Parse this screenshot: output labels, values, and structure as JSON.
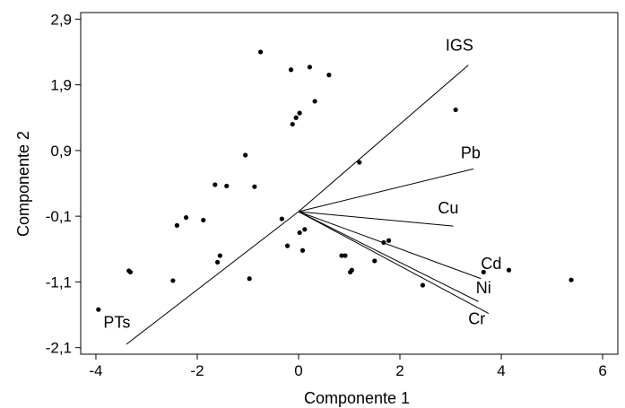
{
  "chart_data": {
    "type": "scatter",
    "xlabel": "Componente 1",
    "ylabel": "Componente 2",
    "xlim": [
      -4.3,
      6.3
    ],
    "ylim": [
      -2.2,
      3.0
    ],
    "xticks": [
      {
        "value": -4,
        "label": "-4"
      },
      {
        "value": -2,
        "label": "-2"
      },
      {
        "value": 0,
        "label": "0"
      },
      {
        "value": 2,
        "label": "2"
      },
      {
        "value": 4,
        "label": "4"
      },
      {
        "value": 6,
        "label": "6"
      }
    ],
    "yticks": [
      {
        "value": 2.9,
        "label": "2,9"
      },
      {
        "value": 1.9,
        "label": "1,9"
      },
      {
        "value": 0.9,
        "label": "0,9"
      },
      {
        "value": -0.1,
        "label": "-0,1"
      },
      {
        "value": -1.1,
        "label": "-1,1"
      },
      {
        "value": -2.1,
        "label": "-2,1"
      }
    ],
    "grid": false,
    "points": [
      {
        "x": -3.95,
        "y": -1.52
      },
      {
        "x": -3.35,
        "y": -0.93
      },
      {
        "x": -3.32,
        "y": -0.95
      },
      {
        "x": -2.48,
        "y": -1.08
      },
      {
        "x": -2.4,
        "y": -0.24
      },
      {
        "x": -2.22,
        "y": -0.12
      },
      {
        "x": -1.88,
        "y": -0.16
      },
      {
        "x": -1.65,
        "y": 0.38
      },
      {
        "x": -1.6,
        "y": -0.8
      },
      {
        "x": -1.55,
        "y": -0.7
      },
      {
        "x": -1.42,
        "y": 0.36
      },
      {
        "x": -1.05,
        "y": 0.83
      },
      {
        "x": -0.97,
        "y": -1.05
      },
      {
        "x": -0.87,
        "y": 0.35
      },
      {
        "x": -0.75,
        "y": 2.4
      },
      {
        "x": -0.33,
        "y": -0.14
      },
      {
        "x": -0.22,
        "y": -0.55
      },
      {
        "x": -0.15,
        "y": 2.13
      },
      {
        "x": -0.12,
        "y": 1.3
      },
      {
        "x": -0.05,
        "y": 1.4
      },
      {
        "x": 0.02,
        "y": 1.47
      },
      {
        "x": 0.02,
        "y": -0.35
      },
      {
        "x": 0.08,
        "y": -0.62
      },
      {
        "x": 0.12,
        "y": -0.3
      },
      {
        "x": 0.22,
        "y": 2.17
      },
      {
        "x": 0.32,
        "y": 1.65
      },
      {
        "x": 0.6,
        "y": 2.05
      },
      {
        "x": 0.85,
        "y": -0.7
      },
      {
        "x": 0.92,
        "y": -0.7
      },
      {
        "x": 1.02,
        "y": -0.95
      },
      {
        "x": 1.05,
        "y": -0.92
      },
      {
        "x": 1.2,
        "y": 0.72
      },
      {
        "x": 1.5,
        "y": -0.78
      },
      {
        "x": 1.68,
        "y": -0.5
      },
      {
        "x": 1.78,
        "y": -0.47
      },
      {
        "x": 2.45,
        "y": -1.15
      },
      {
        "x": 3.1,
        "y": 1.52
      },
      {
        "x": 3.65,
        "y": -0.95
      },
      {
        "x": 4.15,
        "y": -0.92
      },
      {
        "x": 5.38,
        "y": -1.07
      }
    ],
    "vectors": [
      {
        "name": "IGS",
        "x": 3.35,
        "y": 2.2,
        "label_x": 2.9,
        "label_y": 2.42
      },
      {
        "name": "Pb",
        "x": 3.45,
        "y": 0.62,
        "label_x": 3.2,
        "label_y": 0.78
      },
      {
        "name": "Cu",
        "x": 3.05,
        "y": -0.25,
        "label_x": 2.75,
        "label_y": -0.06
      },
      {
        "name": "Cd",
        "x": 3.6,
        "y": -1.05,
        "label_x": 3.6,
        "label_y": -0.9
      },
      {
        "name": "Ni",
        "x": 3.55,
        "y": -1.4,
        "label_x": 3.5,
        "label_y": -1.27
      },
      {
        "name": "Cr",
        "x": 3.75,
        "y": -1.58,
        "label_x": 3.35,
        "label_y": -1.74
      },
      {
        "name": "PTs",
        "x": -3.4,
        "y": -2.05,
        "label_x": -3.85,
        "label_y": -1.8
      }
    ],
    "vector_origin": {
      "x": 0,
      "y": -0.03
    }
  }
}
